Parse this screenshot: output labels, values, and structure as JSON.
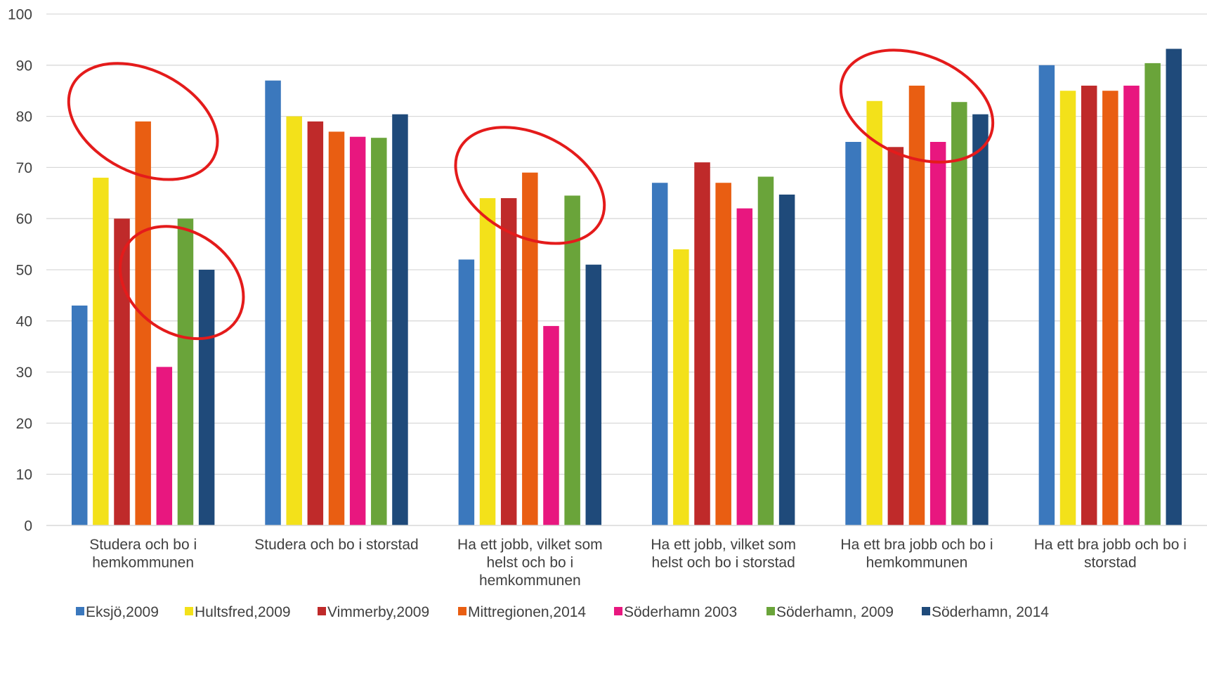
{
  "chart_data": {
    "type": "bar",
    "title": "",
    "xlabel": "",
    "ylabel": "",
    "ylim": [
      0,
      100
    ],
    "yticks": [
      0,
      10,
      20,
      30,
      40,
      50,
      60,
      70,
      80,
      90,
      100
    ],
    "grid": "horizontal",
    "legend_position": "bottom",
    "categories": [
      [
        "Studera och bo i",
        "hemkommunen"
      ],
      [
        "Studera och bo i storstad"
      ],
      [
        "Ha ett jobb, vilket som",
        "helst och bo i",
        "hemkommunen"
      ],
      [
        "Ha ett jobb, vilket som",
        "helst och bo i storstad"
      ],
      [
        "Ha ett bra jobb och bo i",
        "hemkommunen"
      ],
      [
        "Ha ett bra jobb och bo i",
        "storstad"
      ]
    ],
    "series": [
      {
        "name": "Eksjö,2009",
        "color": "#3b78bd",
        "values": [
          43,
          87,
          52,
          67,
          75,
          90
        ]
      },
      {
        "name": "Hultsfred,2009",
        "color": "#f3e11a",
        "values": [
          68,
          80,
          64,
          54,
          83,
          85
        ]
      },
      {
        "name": "Vimmerby,2009",
        "color": "#bf2a2a",
        "values": [
          60,
          79,
          64,
          71,
          74,
          86
        ]
      },
      {
        "name": "Mittregionen,2014",
        "color": "#e95e12",
        "values": [
          79,
          77,
          69,
          67,
          86,
          85
        ]
      },
      {
        "name": "Söderhamn 2003",
        "color": "#e8177f",
        "values": [
          31,
          76,
          39,
          62,
          75,
          86
        ]
      },
      {
        "name": "Söderhamn, 2009",
        "color": "#6aa43a",
        "values": [
          60,
          75.8,
          64.5,
          68.2,
          82.8,
          90.4
        ]
      },
      {
        "name": "Söderhamn, 2014",
        "color": "#1f4a7a",
        "values": [
          50,
          80.4,
          51,
          64.7,
          80.4,
          93.2
        ]
      }
    ],
    "annotations": [
      {
        "shape": "ellipse",
        "color": "#e41b1b",
        "cx_category": 0.5,
        "cy_value": 79,
        "rx_category": 0.41,
        "ry_value": 10,
        "rotation_deg": 27
      },
      {
        "shape": "ellipse",
        "color": "#e41b1b",
        "cx_category": 0.7,
        "cy_value": 47.5,
        "rx_category": 0.26,
        "ry_value": 13,
        "rotation_deg": -55
      },
      {
        "shape": "ellipse",
        "color": "#e41b1b",
        "cx_category": 2.5,
        "cy_value": 66.5,
        "rx_category": 0.41,
        "ry_value": 10,
        "rotation_deg": 27
      },
      {
        "shape": "ellipse",
        "color": "#e41b1b",
        "cx_category": 4.5,
        "cy_value": 82,
        "rx_category": 0.41,
        "ry_value": 10,
        "rotation_deg": 22
      }
    ]
  }
}
